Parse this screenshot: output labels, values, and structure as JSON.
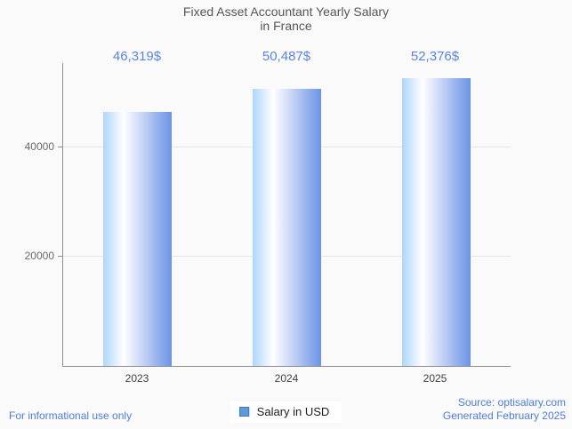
{
  "title": {
    "line1": "Fixed Asset Accountant Yearly Salary",
    "line2": "in France"
  },
  "chart_data": {
    "type": "bar",
    "title": "Fixed Asset Accountant Yearly Salary in France",
    "categories": [
      "2023",
      "2024",
      "2025"
    ],
    "series": [
      {
        "name": "Salary in USD",
        "values": [
          46319,
          50487,
          52376
        ]
      }
    ],
    "data_labels": [
      "46,319$",
      "50,487$",
      "52,376$"
    ],
    "xlabel": "",
    "ylabel": "",
    "ylim": [
      0,
      55200
    ],
    "yticks": [
      20000,
      40000
    ],
    "grid": true,
    "legend_position": "bottom"
  },
  "legend": {
    "label": "Salary in USD",
    "marker_fill": "#569be4",
    "marker_border": "#53739e"
  },
  "colors": {
    "background": "#fafafa",
    "bar_gradient_left": "#aed6fa",
    "bar_gradient_mid": "#ffffff",
    "bar_gradient_right": "#6b93e6",
    "data_label_blue": "#5b84dc",
    "footer_blue": "#4f7cdb",
    "title_gray": "#56565a",
    "axis_line": "#8f8f8f",
    "gridline": "#e6e6e6"
  },
  "footer": {
    "left": "For informational use only",
    "source": "Source: optisalary.com",
    "generated": "Generated February 2025"
  }
}
